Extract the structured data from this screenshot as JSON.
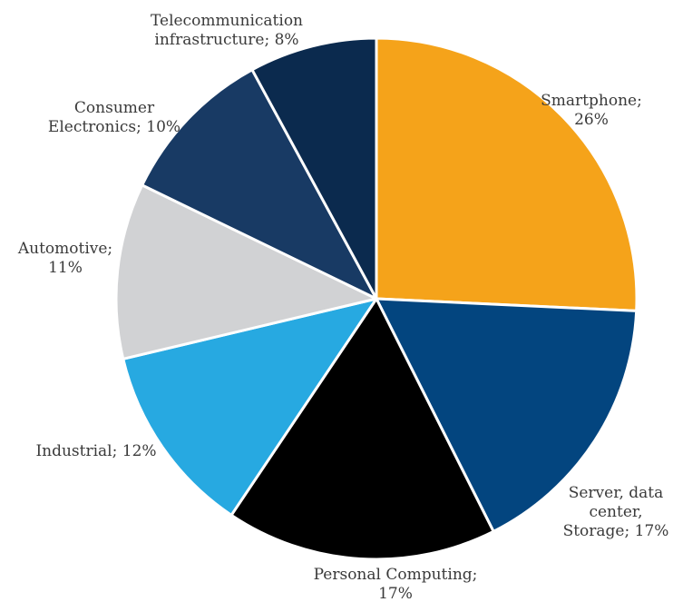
{
  "chart_data": {
    "type": "pie",
    "start_angle_deg": 0,
    "direction": "clockwise",
    "slices": [
      {
        "name": "Smartphone",
        "value": 26,
        "color": "#F5A31A",
        "label_lines": [
          "Smartphone;",
          "26%"
        ]
      },
      {
        "name": "Server, data center, Storage",
        "value": 17,
        "color": "#03457F",
        "label_lines": [
          "Server, data",
          "center,",
          "Storage; 17%"
        ]
      },
      {
        "name": "Personal Computing",
        "value": 17,
        "color": "#000000",
        "label_lines": [
          "Personal Computing;",
          "17%"
        ]
      },
      {
        "name": "Industrial",
        "value": 12,
        "color": "#27A9E1",
        "label_lines": [
          "Industrial; 12%"
        ]
      },
      {
        "name": "Automotive",
        "value": 11,
        "color": "#D1D2D4",
        "label_lines": [
          "Automotive;",
          "11%"
        ]
      },
      {
        "name": "Consumer Electronics",
        "value": 10,
        "color": "#183A64",
        "label_lines": [
          "Consumer",
          "Electronics; 10%"
        ]
      },
      {
        "name": "Telecommunication infrastructure",
        "value": 8,
        "color": "#0B2A4E",
        "label_lines": [
          "Telecommunication",
          "infrastructure; 8%"
        ]
      }
    ]
  }
}
